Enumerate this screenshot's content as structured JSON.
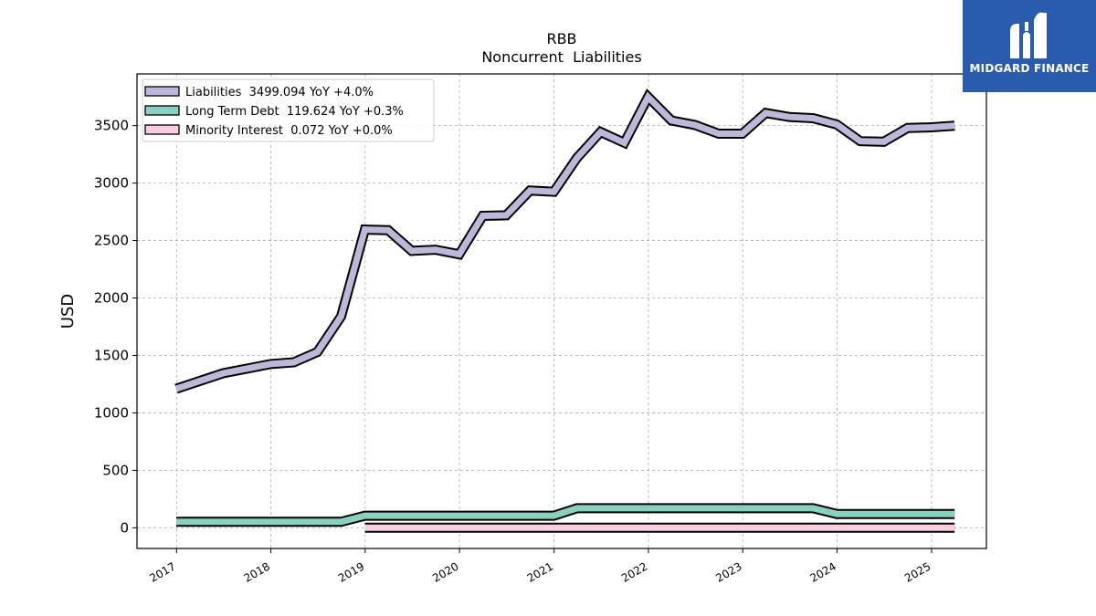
{
  "chart_data": {
    "type": "line",
    "title": "RBB",
    "subtitle": "Noncurrent  Liabilities",
    "xlabel": "",
    "ylabel": "USD",
    "ylim": [
      -180,
      3950
    ],
    "xlim": [
      "2016-08-01",
      "2025-08-01"
    ],
    "yticks": [
      0,
      500,
      1000,
      1500,
      2000,
      2500,
      3000,
      3500
    ],
    "xticks": [
      "2017",
      "2018",
      "2019",
      "2020",
      "2021",
      "2022",
      "2023",
      "2024",
      "2025"
    ],
    "grid": true,
    "legend_position": "top-left",
    "series": [
      {
        "name": "Liabilities",
        "legend": "Liabilities  3499.094 YoY +4.0%",
        "color": "#bcb8d9",
        "points": [
          [
            "2016-12-31",
            1210
          ],
          [
            "2017-06-30",
            1345
          ],
          [
            "2017-12-31",
            1425
          ],
          [
            "2018-03-31",
            1440
          ],
          [
            "2018-06-30",
            1530
          ],
          [
            "2018-09-30",
            1840
          ],
          [
            "2018-12-31",
            2595
          ],
          [
            "2019-03-31",
            2590
          ],
          [
            "2019-06-30",
            2410
          ],
          [
            "2019-09-30",
            2420
          ],
          [
            "2019-12-31",
            2380
          ],
          [
            "2020-03-31",
            2715
          ],
          [
            "2020-06-30",
            2720
          ],
          [
            "2020-09-30",
            2935
          ],
          [
            "2020-12-31",
            2925
          ],
          [
            "2021-03-31",
            3220
          ],
          [
            "2021-06-30",
            3445
          ],
          [
            "2021-09-30",
            3350
          ],
          [
            "2021-12-31",
            3750
          ],
          [
            "2022-03-31",
            3545
          ],
          [
            "2022-06-30",
            3505
          ],
          [
            "2022-09-30",
            3430
          ],
          [
            "2022-12-31",
            3430
          ],
          [
            "2023-03-31",
            3610
          ],
          [
            "2023-06-30",
            3575
          ],
          [
            "2023-09-30",
            3565
          ],
          [
            "2023-12-31",
            3510
          ],
          [
            "2024-03-31",
            3365
          ],
          [
            "2024-06-30",
            3360
          ],
          [
            "2024-09-30",
            3480
          ],
          [
            "2024-12-31",
            3485
          ],
          [
            "2025-03-31",
            3499.094
          ]
        ]
      },
      {
        "name": "Long Term Debt",
        "legend": "Long Term Debt  119.624 YoY +0.3%",
        "color": "#88d0bf",
        "points": [
          [
            "2016-12-31",
            52
          ],
          [
            "2017-06-30",
            52
          ],
          [
            "2017-12-31",
            52
          ],
          [
            "2018-06-30",
            52
          ],
          [
            "2018-09-30",
            52
          ],
          [
            "2018-12-31",
            105
          ],
          [
            "2019-06-30",
            105
          ],
          [
            "2019-12-31",
            105
          ],
          [
            "2020-06-30",
            105
          ],
          [
            "2020-09-30",
            105
          ],
          [
            "2020-12-31",
            105
          ],
          [
            "2021-03-31",
            170
          ],
          [
            "2021-12-31",
            170
          ],
          [
            "2022-12-31",
            170
          ],
          [
            "2023-09-30",
            170
          ],
          [
            "2023-12-31",
            120
          ],
          [
            "2024-06-30",
            120
          ],
          [
            "2024-12-31",
            120
          ],
          [
            "2025-03-31",
            119.624
          ]
        ]
      },
      {
        "name": "Minority Interest",
        "legend": "Minority Interest  0.072 YoY +0.0%",
        "color": "#f8cde0",
        "points": [
          [
            "2018-12-31",
            0.072
          ],
          [
            "2020-12-31",
            0.072
          ],
          [
            "2022-12-31",
            0.072
          ],
          [
            "2024-12-31",
            0.072
          ],
          [
            "2025-03-31",
            0.072
          ]
        ]
      }
    ]
  },
  "logo": {
    "text": "MIDGARD FINANCE",
    "background": "#2a5bad"
  }
}
